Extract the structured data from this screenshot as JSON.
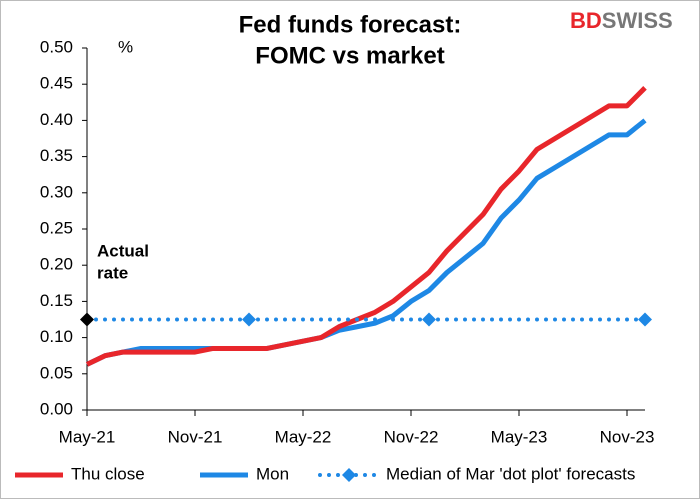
{
  "chart_data": {
    "type": "line",
    "title": [
      "Fed funds forecast:",
      "FOMC vs market"
    ],
    "logo": [
      "BD",
      "SWISS"
    ],
    "y_unit": "%",
    "annotation": {
      "lines": [
        "Actual",
        "rate"
      ],
      "value": 0.125
    },
    "categories": [
      "May-21",
      null,
      null,
      null,
      null,
      null,
      "Nov-21",
      null,
      null,
      null,
      null,
      null,
      "May-22",
      null,
      null,
      null,
      null,
      null,
      "Nov-22",
      null,
      null,
      null,
      null,
      null,
      "May-23",
      null,
      null,
      null,
      null,
      null,
      "Nov-23",
      null
    ],
    "series": [
      {
        "name": "Thu close",
        "color": "#e8262b",
        "style": "solid",
        "values": [
          0.063,
          0.075,
          0.08,
          0.08,
          0.08,
          0.08,
          0.08,
          0.085,
          0.085,
          0.085,
          0.085,
          0.09,
          0.095,
          0.1,
          0.115,
          0.125,
          0.135,
          0.15,
          0.17,
          0.19,
          0.22,
          0.245,
          0.27,
          0.305,
          0.33,
          0.36,
          0.375,
          0.39,
          0.405,
          0.42,
          0.42,
          0.445
        ]
      },
      {
        "name": "Mon",
        "color": "#1e88e5",
        "style": "solid",
        "values": [
          0.063,
          0.075,
          0.08,
          0.085,
          0.085,
          0.085,
          0.085,
          0.085,
          0.085,
          0.085,
          0.085,
          0.09,
          0.095,
          0.1,
          0.11,
          0.115,
          0.12,
          0.13,
          0.15,
          0.165,
          0.19,
          0.21,
          0.23,
          0.265,
          0.29,
          0.32,
          0.335,
          0.35,
          0.365,
          0.38,
          0.38,
          0.4
        ]
      },
      {
        "name": "Median of Mar 'dot plot' forecasts",
        "color": "#1e88e5",
        "style": "dotted",
        "values": [
          null,
          null,
          null,
          null,
          null,
          null,
          null,
          null,
          null,
          0.125,
          null,
          null,
          null,
          null,
          null,
          null,
          null,
          null,
          null,
          0.125,
          null,
          null,
          null,
          null,
          null,
          null,
          null,
          null,
          null,
          null,
          null,
          0.125
        ]
      }
    ],
    "ylim": [
      0,
      0.5
    ],
    "yticks": [
      {
        "value": 0,
        "label": "0.00"
      },
      {
        "value": 0.05,
        "label": "0.05"
      },
      {
        "value": 0.1,
        "label": "0.10"
      },
      {
        "value": 0.15,
        "label": "0.15"
      },
      {
        "value": 0.2,
        "label": "0.20"
      },
      {
        "value": 0.25,
        "label": "0.25"
      },
      {
        "value": 0.3,
        "label": "0.30"
      },
      {
        "value": 0.35,
        "label": "0.35"
      },
      {
        "value": 0.4,
        "label": "0.40"
      },
      {
        "value": 0.45,
        "label": "0.45"
      },
      {
        "value": 0.5,
        "label": "0.50"
      }
    ],
    "grid": false,
    "legend": "bottom"
  }
}
